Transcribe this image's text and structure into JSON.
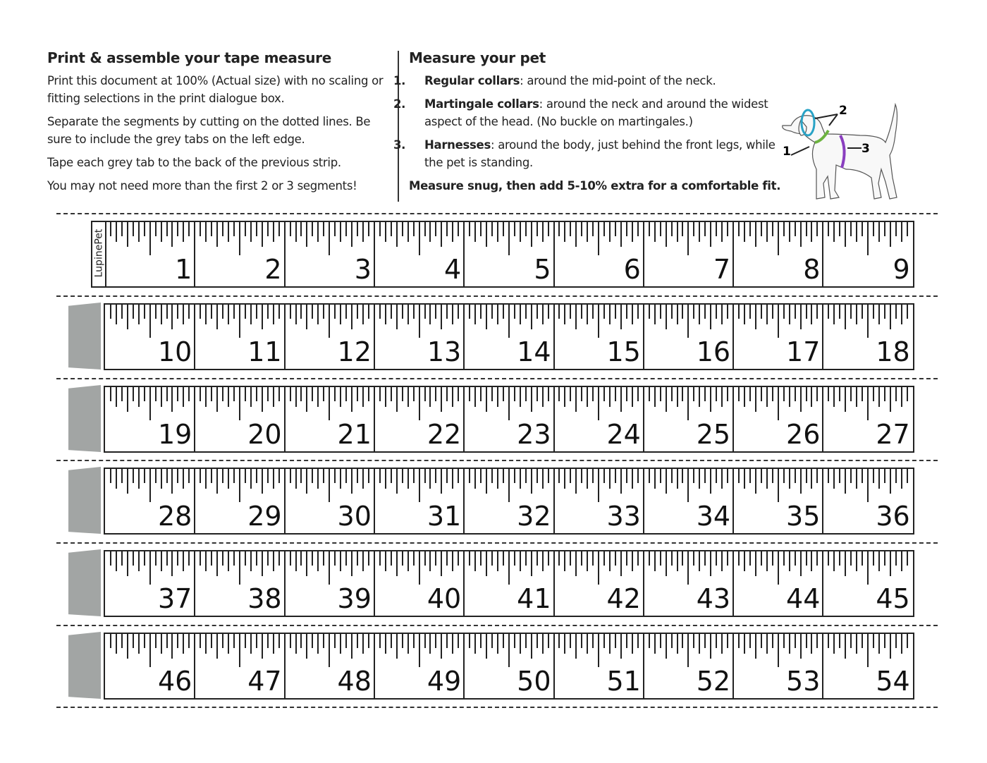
{
  "left": {
    "title": "Print & assemble your tape measure",
    "paragraphs": [
      "Print this document at 100% (Actual size) with no scaling or fitting selections in the print dialogue box.",
      "Separate the segments by cutting on the dotted lines. Be sure to include the grey tabs on the left edge.",
      "Tape each grey tab to the back of the previous strip.",
      "You may not need more than the first 2 or 3 segments!"
    ]
  },
  "right": {
    "title": "Measure your pet",
    "items": [
      {
        "num": "1.",
        "term": "Regular collars",
        "text": ": around the mid-point of the neck."
      },
      {
        "num": "2.",
        "term": "Martingale collars",
        "text": ": around the neck and around the widest aspect of the head. (No buckle on martingales.)"
      },
      {
        "num": "3.",
        "term": "Harnesses",
        "text": ": around the body, just behind the front legs, while the pet is standing."
      }
    ],
    "note": "Measure snug, then add 5-10% extra for a comfortable fit."
  },
  "diagram": {
    "labels": [
      "1",
      "2",
      "3"
    ],
    "colors": {
      "collar": "#6cb33f",
      "head": "#29a3c6",
      "harness": "#8a3fbf"
    }
  },
  "brand": "LupinePet",
  "tab_color": "#a2a5a4",
  "ticks_per_inch": 16,
  "rows": [
    [
      1,
      2,
      3,
      4,
      5,
      6,
      7,
      8,
      9
    ],
    [
      10,
      11,
      12,
      13,
      14,
      15,
      16,
      17,
      18
    ],
    [
      19,
      20,
      21,
      22,
      23,
      24,
      25,
      26,
      27
    ],
    [
      28,
      29,
      30,
      31,
      32,
      33,
      34,
      35,
      36
    ],
    [
      37,
      38,
      39,
      40,
      41,
      42,
      43,
      44,
      45
    ],
    [
      46,
      47,
      48,
      49,
      50,
      51,
      52,
      53,
      54
    ]
  ]
}
